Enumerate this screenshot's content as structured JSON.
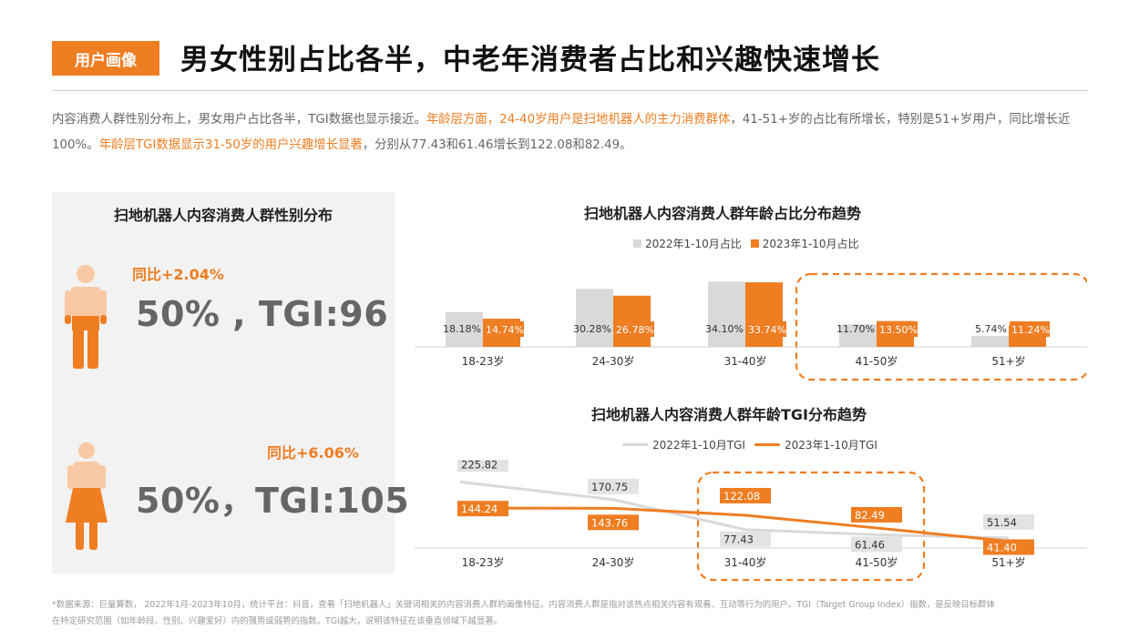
{
  "header": {
    "tag": "用户画像",
    "title": "男女性别占比各半，中老年消费者占比和兴趣快速增长"
  },
  "intro": {
    "p1": "内容消费人群性别分布上，男女用户占比各半，TGI数据也显示接近。",
    "p2": "年龄层方面，24-40岁用户是扫地机器人的主力消费群体",
    "p3": "，41-51+岁的占比有所增长，特别是51+岁用户，同比增长近100%。",
    "p4": "年龄层TGI数据显示31-50岁的用户兴趣增长显著",
    "p5": "，分别从77.43和61.46增长到122.08和82.49。"
  },
  "gender_panel": {
    "title": "扫地机器人内容消费人群性别分布",
    "male": {
      "yoy": "同比+2.04%",
      "stat": "50% , TGI:96",
      "icon": "male-person-icon"
    },
    "female": {
      "yoy": "同比+6.06%",
      "stat": "50%，TGI:105",
      "icon": "female-person-icon"
    }
  },
  "colors": {
    "accent": "#ef7d22",
    "gray": "#d9d9d9",
    "text_gray": "#666666"
  },
  "chart_data": [
    {
      "type": "bar",
      "title": "扫地机器人内容消费人群年龄占比分布趋势",
      "categories": [
        "18-23岁",
        "24-30岁",
        "31-40岁",
        "41-50岁",
        "51+岁"
      ],
      "series": [
        {
          "name": "2022年1-10月占比",
          "values": [
            18.18,
            30.28,
            34.1,
            11.7,
            5.74
          ],
          "labels": [
            "18.18%",
            "30.28%",
            "34.10%",
            "11.70%",
            "5.74%"
          ],
          "color": "#d9d9d9"
        },
        {
          "name": "2023年1-10月占比",
          "values": [
            14.74,
            26.78,
            33.74,
            13.5,
            11.24
          ],
          "labels": [
            "14.74%",
            "26.78%",
            "33.74%",
            "13.50%",
            "11.24%"
          ],
          "color": "#ef7d22"
        }
      ],
      "highlight": [
        "41-50岁",
        "51+岁"
      ]
    },
    {
      "type": "line",
      "title": "扫地机器人内容消费人群年龄TGI分布趋势",
      "categories": [
        "18-23岁",
        "24-30岁",
        "31-40岁",
        "41-50岁",
        "51+岁"
      ],
      "series": [
        {
          "name": "2022年1-10月TGI",
          "values": [
            225.82,
            170.75,
            77.43,
            61.46,
            51.54
          ],
          "labels": [
            "225.82",
            "170.75",
            "77.43",
            "61.46",
            "51.54"
          ],
          "color": "#d9d9d9"
        },
        {
          "name": "2023年1-10月TGI",
          "values": [
            144.24,
            143.76,
            122.08,
            82.49,
            41.4
          ],
          "labels": [
            "144.24",
            "143.76",
            "122.08",
            "82.49",
            "41.40"
          ],
          "color": "#ef7d22"
        }
      ],
      "highlight": [
        "31-40岁",
        "41-50岁"
      ]
    }
  ],
  "footnote": {
    "line1": "*数据来源：巨量算数， 2022年1月-2023年10月，统计平台：抖音，查看「扫地机器人」关键词相关的内容消费人群的画像特征。内容消费人群是指对该热点相关内容有观看、互动等行为的用户。TGI（Target Group Index）指数，是反映目标群体",
    "line2": "在特定研究范围（如年龄段、性别、兴趣爱好）内的强势或弱势的指数。TGI越大，说明该特征在该垂直领域下越显著。"
  }
}
